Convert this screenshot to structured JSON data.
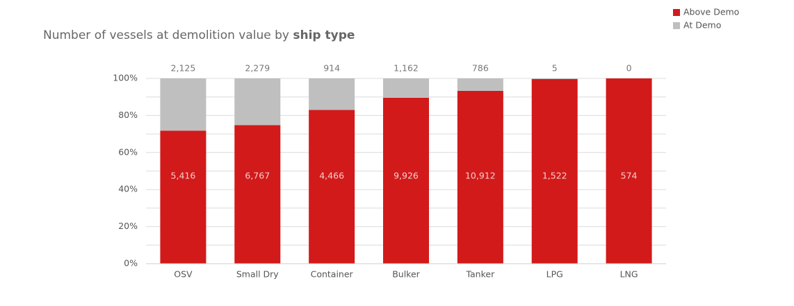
{
  "chart_data": {
    "type": "bar",
    "stacking": "percent",
    "title": "Number of vessels at demolition value by",
    "title_emphasis": "ship type",
    "categories": [
      "OSV",
      "Small Dry",
      "Container",
      "Bulker",
      "Tanker",
      "LPG",
      "LNG"
    ],
    "series": [
      {
        "name": "Above Demo",
        "color": "#d21a1a",
        "values": [
          5416,
          6767,
          4466,
          9926,
          10912,
          1522,
          574
        ],
        "value_labels": [
          "5,416",
          "6,767",
          "4,466",
          "9,926",
          "10,912",
          "1,522",
          "574"
        ]
      },
      {
        "name": "At Demo",
        "color": "#bfbfbf",
        "values": [
          2125,
          2279,
          914,
          1162,
          786,
          5,
          0
        ],
        "value_labels": [
          "2,125",
          "2,279",
          "914",
          "1,162",
          "786",
          "5",
          "0"
        ]
      }
    ],
    "ylim": [
      0,
      100
    ],
    "yticks": [
      {
        "value": 0,
        "label": "0%"
      },
      {
        "value": 20,
        "label": "20%"
      },
      {
        "value": 40,
        "label": "40%"
      },
      {
        "value": 60,
        "label": "60%"
      },
      {
        "value": 80,
        "label": "80%"
      },
      {
        "value": 100,
        "label": "100%"
      }
    ],
    "minor_yticks": [
      10,
      30,
      50,
      70,
      90
    ],
    "grid": true,
    "legend": "top-right"
  }
}
